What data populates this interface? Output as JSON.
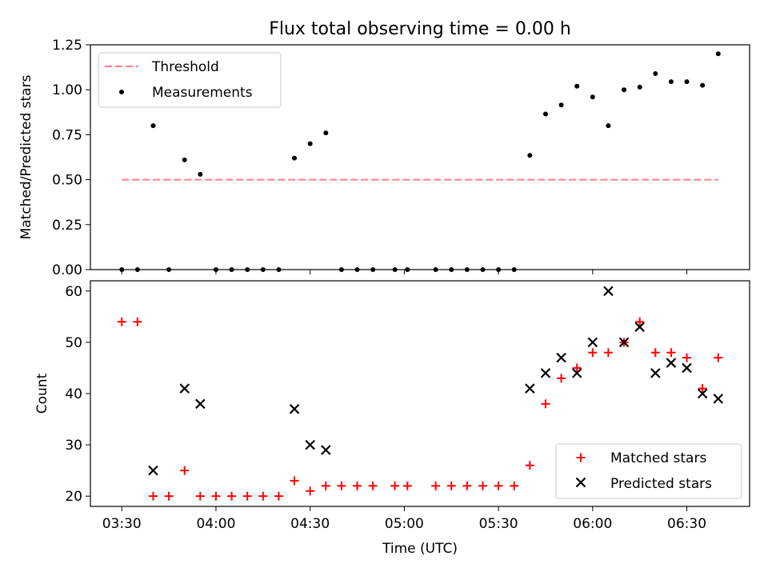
{
  "title": "Flux total observing time = 0.00 h",
  "chart_data": [
    {
      "type": "scatter",
      "ylabel": "Matched/Predicted stars",
      "xlim": [
        "03:20",
        "06:50"
      ],
      "ylim": [
        0,
        1.25
      ],
      "yticks": [
        0.0,
        0.25,
        0.5,
        0.75,
        1.0,
        1.25
      ],
      "ytick_labels": [
        "0.00",
        "0.25",
        "0.50",
        "0.75",
        "1.00",
        "1.25"
      ],
      "legend_position": "top-left",
      "grid": false,
      "threshold": {
        "name": "Threshold",
        "color": "#ff8080",
        "style": "dashed",
        "x": [
          "03:30",
          "06:40"
        ],
        "y": 0.5
      },
      "series": [
        {
          "name": "Measurements",
          "marker": "dot",
          "color": "#000000",
          "x": [
            "03:30",
            "03:35",
            "03:40",
            "03:45",
            "03:50",
            "03:55",
            "04:00",
            "04:05",
            "04:10",
            "04:15",
            "04:20",
            "04:25",
            "04:30",
            "04:35",
            "04:40",
            "04:45",
            "04:50",
            "04:57",
            "05:01",
            "05:10",
            "05:15",
            "05:20",
            "05:25",
            "05:30",
            "05:35",
            "05:40",
            "05:45",
            "05:50",
            "05:55",
            "06:00",
            "06:05",
            "06:10",
            "06:15",
            "06:20",
            "06:25",
            "06:30",
            "06:35",
            "06:40"
          ],
          "y": [
            0.0,
            0.0,
            0.8,
            0.0,
            0.61,
            0.53,
            0.0,
            0.0,
            0.0,
            0.0,
            0.0,
            0.62,
            0.7,
            0.76,
            0.0,
            0.0,
            0.0,
            0.0,
            0.0,
            0.0,
            0.0,
            0.0,
            0.0,
            0.0,
            0.0,
            0.635,
            0.865,
            0.915,
            1.02,
            0.96,
            0.8,
            1.0,
            1.015,
            1.09,
            1.045,
            1.045,
            1.025,
            1.2
          ]
        }
      ]
    },
    {
      "type": "scatter",
      "xlabel": "Time (UTC)",
      "ylabel": "Count",
      "xlim": [
        "03:20",
        "06:50"
      ],
      "ylim": [
        18,
        62
      ],
      "xticks": [
        "03:30",
        "04:00",
        "04:30",
        "05:00",
        "05:30",
        "06:00",
        "06:30"
      ],
      "yticks": [
        20,
        30,
        40,
        50,
        60
      ],
      "legend_position": "bottom-right",
      "grid": false,
      "series": [
        {
          "name": "Matched stars",
          "marker": "plus",
          "color": "#ff0000",
          "x": [
            "03:30",
            "03:35",
            "03:40",
            "03:45",
            "03:50",
            "03:55",
            "04:00",
            "04:05",
            "04:10",
            "04:15",
            "04:20",
            "04:25",
            "04:30",
            "04:35",
            "04:40",
            "04:45",
            "04:50",
            "04:57",
            "05:01",
            "05:10",
            "05:15",
            "05:20",
            "05:25",
            "05:30",
            "05:35",
            "05:40",
            "05:45",
            "05:50",
            "05:55",
            "06:00",
            "06:05",
            "06:10",
            "06:15",
            "06:20",
            "06:25",
            "06:30",
            "06:35",
            "06:40"
          ],
          "y": [
            54,
            54,
            20,
            20,
            25,
            20,
            20,
            20,
            20,
            20,
            20,
            23,
            21,
            22,
            22,
            22,
            22,
            22,
            22,
            22,
            22,
            22,
            22,
            22,
            22,
            26,
            38,
            43,
            45,
            48,
            48,
            50,
            54,
            48,
            48,
            47,
            41,
            47
          ]
        },
        {
          "name": "Predicted stars",
          "marker": "x",
          "color": "#000000",
          "x": [
            "03:40",
            "03:50",
            "03:55",
            "04:25",
            "04:30",
            "04:35",
            "05:40",
            "05:45",
            "05:50",
            "05:55",
            "06:00",
            "06:05",
            "06:10",
            "06:15",
            "06:20",
            "06:25",
            "06:30",
            "06:35",
            "06:40"
          ],
          "y": [
            25,
            41,
            38,
            37,
            30,
            29,
            41,
            44,
            47,
            44,
            50,
            60,
            50,
            53,
            44,
            46,
            45,
            40,
            39
          ]
        }
      ]
    }
  ]
}
